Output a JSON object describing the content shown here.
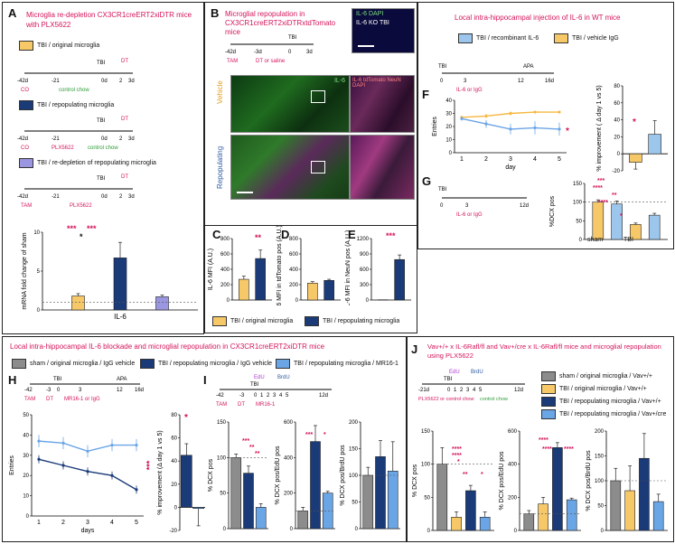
{
  "colors": {
    "orig": "#f6c868",
    "repop": "#1a3a78",
    "redep": "#9a96e0",
    "light": "#6aa5e6",
    "gray": "#8c8c8c",
    "accent": "#d4145a",
    "green": "#2e9b37"
  },
  "panelA": {
    "label": "A",
    "title": "Microglia re-depletion CX3CR1creERT2xiDTR mice with PLX5622",
    "legend": [
      "TBI / original microglia",
      "TBI / repopulating microglia",
      "TBI / re-depletion of repopulating microglia"
    ],
    "timeline1": {
      "ticks": [
        "-42d",
        "-21",
        "0d",
        "2",
        "3d"
      ],
      "tbi": "TBI",
      "dt": "DT",
      "co": "CO",
      "chow": "control chow"
    },
    "timeline2": {
      "ticks": [
        "-42d",
        "-21",
        "0d",
        "2",
        "3d"
      ],
      "tbi": "TBI",
      "dt": "DT",
      "co": "CO",
      "plx": "PLX5622",
      "chow": "control chow"
    },
    "timeline3": {
      "ticks": [
        "-42d",
        "-21",
        "0d",
        "2",
        "3d"
      ],
      "tbi": "TBI",
      "dt": "DT",
      "tam": "TAM",
      "plx": "PLX5622"
    },
    "sig": [
      "***",
      "***",
      "*"
    ]
  },
  "panelB": {
    "label": "B",
    "title": "Microglial repopulation in CX3CR1creERT2xiDTRxtdTomato mice",
    "timeline": {
      "ticks": [
        "-42d",
        "-3d",
        "0",
        "3d"
      ],
      "tbi": "TBI",
      "tam": "TAM",
      "dt": "DT or saline"
    },
    "ko_label": "IL-6  DAPI",
    "ko_caption": "IL-6 KO TBI",
    "row1": "Vehicle",
    "row2": "Repopulating",
    "il6": "IL-6",
    "merge": "IL-6 tdTomato NeuN DAPI"
  },
  "panelCDE": {
    "labels": [
      "C",
      "D",
      "E"
    ],
    "legend": [
      "TBI / original microglia",
      "TBI / repopulating microglia"
    ],
    "sig": [
      "**",
      "***"
    ]
  },
  "panelF": {
    "label": "F",
    "title": "Local intra-hippocampal injection of IL-6 in WT mice",
    "legend": [
      "TBI / recombinant IL-6",
      "TBI / vehicle IgG"
    ],
    "timeline": {
      "ticks": [
        "0",
        "3",
        "12",
        "16d"
      ],
      "tbi": "TBI",
      "apa": "APA",
      "inj": "IL-6 or IgG"
    },
    "sig": [
      "*",
      "*"
    ]
  },
  "panelG": {
    "label": "G",
    "timeline": {
      "ticks": [
        "0",
        "3",
        "12d"
      ],
      "tbi": "TBI",
      "inj": "IL-6 or IgG"
    },
    "sig": [
      "***",
      "****",
      "**",
      "****",
      "*"
    ],
    "group_sham": "sham",
    "group_tbi": "TBI"
  },
  "panelH": {
    "label": "H",
    "title": "Local intra-hippocampal IL-6 blockade and microglial repopulation in CX3CR1creERT2xiDTR mice",
    "legend": [
      "sham / original microglia / IgG vehicle",
      "TBI / repopulating microglia / IgG vehicle",
      "TBI / repopulating microglia / MR16-1"
    ],
    "timeline": {
      "ticks": [
        "-42",
        "-3",
        "0",
        "3",
        "12",
        "16d"
      ],
      "tbi": "TBI",
      "apa": "APA",
      "tam": "TAM",
      "dt": "DT",
      "inj": "MR16-1 or IgG"
    },
    "sig": [
      "***",
      "*"
    ]
  },
  "panelI": {
    "label": "I",
    "timeline": {
      "ticks": [
        "-42",
        "-3",
        "0",
        "1",
        "2",
        "3",
        "4",
        "5",
        "12d"
      ],
      "tbi": "TBI",
      "tam": "TAM",
      "dt": "DT",
      "inj": "MR16-1",
      "edu": "EdU",
      "brdu": "BrdU"
    },
    "sig1": [
      "***",
      "**",
      "**"
    ],
    "sig2": [
      "***",
      "*"
    ]
  },
  "panelJ": {
    "label": "J",
    "title": "Vav+/+ x IL-6Rafl/fl and Vav+/cre x IL-6Rafl/fl mice and microglial repopulation using PLX5622",
    "legend": [
      "sham / original microglia / Vav+/+",
      "TBI / original microglia / Vav+/+",
      "TBI / repopulating microglia / Vav+/+",
      "TBI / repopulating microglia / Vav+/cre"
    ],
    "timeline": {
      "ticks": [
        "-21d",
        "0",
        "1",
        "2",
        "3",
        "4",
        "5",
        "12d"
      ],
      "tbi": "TBI",
      "edu": "EdU",
      "brdu": "BrdU",
      "plx": "PLX5622 or control chow",
      "chow": "control chow"
    },
    "sig1": [
      "****",
      "****",
      "*",
      "**",
      "*"
    ],
    "sig2": [
      "****",
      "****",
      "****"
    ]
  },
  "chart_data": [
    {
      "id": "A-il6",
      "type": "bar",
      "title": "",
      "categories": [
        "IL-6"
      ],
      "series": [
        {
          "name": "TBI / original microglia",
          "values": [
            1.8
          ]
        },
        {
          "name": "TBI / repopulating microglia",
          "values": [
            6.7
          ]
        },
        {
          "name": "TBI / re-depletion of repopulating microglia",
          "values": [
            1.7
          ]
        }
      ],
      "errors": [
        0.3,
        2.0,
        0.2
      ],
      "ylabel": "mRNA fold change of sham",
      "ylim": [
        0,
        10
      ],
      "yticks": [
        0,
        5,
        10
      ],
      "refline": 1,
      "xlabel": "IL-6"
    },
    {
      "id": "C",
      "type": "bar",
      "categories": [
        "orig",
        "repop"
      ],
      "values": [
        270,
        540
      ],
      "errors": [
        40,
        110
      ],
      "ylabel": "IL-6 MFI (A.U.)",
      "ylim": [
        0,
        800
      ],
      "yticks": [
        0,
        200,
        400,
        600,
        800
      ]
    },
    {
      "id": "D",
      "type": "bar",
      "categories": [
        "orig",
        "repop"
      ],
      "values": [
        220,
        255
      ],
      "errors": [
        20,
        15
      ],
      "ylabel": "IL-6 MFI in tdTomato pos (A.U.)",
      "ylim": [
        0,
        800
      ],
      "yticks": [
        0,
        200,
        400,
        600,
        800
      ]
    },
    {
      "id": "E",
      "type": "bar",
      "categories": [
        "orig",
        "repop"
      ],
      "values": [
        5,
        790
      ],
      "errors": [
        0,
        90
      ],
      "ylabel": "IL-6 MFI in NeuN pos (A.U.)",
      "ylim": [
        0,
        1200
      ],
      "yticks": [
        0,
        300,
        600,
        900,
        1200
      ]
    },
    {
      "id": "F-line",
      "type": "line",
      "x": [
        1,
        2,
        3,
        4,
        5
      ],
      "series": [
        {
          "name": "TBI / vehicle IgG",
          "values": [
            27,
            28,
            30,
            31,
            31
          ],
          "errors": [
            1,
            1.5,
            1.5,
            1,
            1
          ]
        },
        {
          "name": "TBI / recombinant IL-6",
          "values": [
            26,
            22,
            18,
            19,
            18
          ],
          "errors": [
            1.5,
            3,
            4,
            5,
            5
          ]
        }
      ],
      "xlabel": "day",
      "ylabel": "Entries",
      "ylim": [
        0,
        40
      ],
      "yticks": [
        0,
        10,
        20,
        30,
        40
      ]
    },
    {
      "id": "F-bar",
      "type": "bar",
      "categories": [
        "IgG",
        "IL-6"
      ],
      "values": [
        -10,
        23
      ],
      "errors": [
        8,
        16
      ],
      "ylabel": "% improvement ( Δ day 1 vs 5)",
      "ylim": [
        -20,
        80
      ],
      "yticks": [
        -20,
        0,
        20,
        40,
        60,
        80
      ]
    },
    {
      "id": "G",
      "type": "bar",
      "categories": [
        "sham IgG",
        "sham IL-6",
        "TBI IgG",
        "TBI IL-6"
      ],
      "values": [
        100,
        95,
        40,
        65
      ],
      "errors": [
        6,
        8,
        4,
        5
      ],
      "ylabel": "%DCX pos",
      "ylim": [
        0,
        150
      ],
      "yticks": [
        0,
        50,
        100,
        150
      ],
      "refline": 100
    },
    {
      "id": "H-line",
      "type": "line",
      "x": [
        1,
        2,
        3,
        4,
        5
      ],
      "series": [
        {
          "name": "TBI / repopulating microglia / MR16-1",
          "values": [
            37,
            36,
            32,
            35,
            35
          ],
          "errors": [
            3,
            3,
            3,
            3,
            3
          ]
        },
        {
          "name": "TBI / repopulating microglia / IgG vehicle",
          "values": [
            28,
            25,
            22,
            20,
            13
          ],
          "errors": [
            2,
            2,
            2,
            2,
            2
          ]
        }
      ],
      "xlabel": "days",
      "ylabel": "Entries",
      "ylim": [
        0,
        50
      ],
      "yticks": [
        0,
        10,
        20,
        30,
        40,
        50
      ]
    },
    {
      "id": "H-bar",
      "type": "bar",
      "categories": [
        "IgG",
        "MR16-1"
      ],
      "values": [
        45,
        -1
      ],
      "errors": [
        10,
        15
      ],
      "ylabel": "% improvement (Δ day 1 vs 5)",
      "ylim": [
        -20,
        80
      ],
      "yticks": [
        -20,
        0,
        20,
        40,
        60,
        80
      ]
    },
    {
      "id": "I-dcx",
      "type": "bar",
      "categories": [
        "sham",
        "repop IgG",
        "repop MR16-1"
      ],
      "values": [
        100,
        78,
        30
      ],
      "errors": [
        5,
        10,
        5
      ],
      "ylabel": "% DCX pos",
      "ylim": [
        0,
        150
      ],
      "yticks": [
        0,
        50,
        100,
        150
      ],
      "refline": 100
    },
    {
      "id": "I-edu",
      "type": "bar",
      "categories": [
        "sham",
        "repop IgG",
        "repop MR16-1"
      ],
      "values": [
        100,
        490,
        200
      ],
      "errors": [
        20,
        90,
        10
      ],
      "ylabel": "% DCX pos/EdU pos",
      "ylim": [
        0,
        600
      ],
      "yticks": [
        0,
        200,
        400,
        600
      ],
      "refline": 100
    },
    {
      "id": "I-brdu",
      "type": "bar",
      "categories": [
        "sham",
        "repop IgG",
        "repop MR16-1"
      ],
      "values": [
        100,
        135,
        108
      ],
      "errors": [
        15,
        30,
        55
      ],
      "ylabel": "% DCX pos/BrdU pos",
      "ylim": [
        0,
        200
      ],
      "yticks": [
        0,
        50,
        100,
        150,
        200
      ],
      "refline": 100
    },
    {
      "id": "J-dcx",
      "type": "bar",
      "categories": [
        "sham",
        "TBI orig",
        "TBI repop Vav+/+",
        "TBI repop Vav+/cre"
      ],
      "values": [
        100,
        20,
        60,
        20
      ],
      "errors": [
        25,
        8,
        8,
        8
      ],
      "ylabel": "% DCX pos",
      "ylim": [
        0,
        150
      ],
      "yticks": [
        0,
        50,
        100,
        150
      ],
      "refline": 100
    },
    {
      "id": "J-edu",
      "type": "bar",
      "categories": [
        "sham",
        "TBI orig",
        "TBI repop Vav+/+",
        "TBI repop Vav+/cre"
      ],
      "values": [
        100,
        160,
        500,
        185
      ],
      "errors": [
        20,
        40,
        30,
        10
      ],
      "ylabel": "% DCX pos/EdU pos",
      "ylim": [
        0,
        600
      ],
      "yticks": [
        0,
        200,
        400,
        600
      ],
      "refline": 100
    },
    {
      "id": "J-brdu",
      "type": "bar",
      "categories": [
        "sham",
        "TBI orig",
        "TBI repop Vav+/+",
        "TBI repop Vav+/cre"
      ],
      "values": [
        100,
        80,
        145,
        58
      ],
      "errors": [
        25,
        50,
        50,
        15
      ],
      "ylabel": "% DCX pos/BrdU pos",
      "ylim": [
        0,
        200
      ],
      "yticks": [
        0,
        50,
        100,
        150,
        200
      ],
      "refline": 100
    }
  ]
}
